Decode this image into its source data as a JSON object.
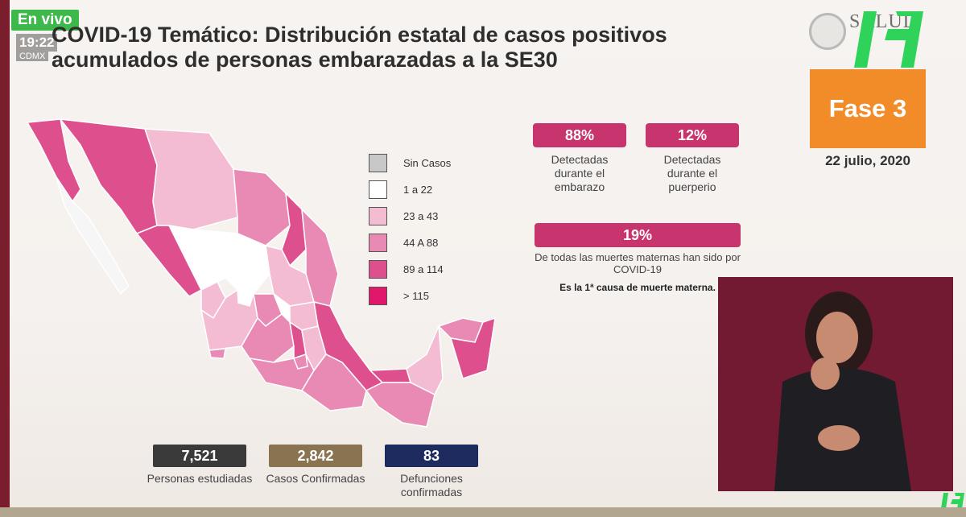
{
  "live": {
    "badge": "En vivo",
    "time": "19:22",
    "city": "CDMX"
  },
  "title": "COVID-19 Temático: Distribución estatal de casos positivos acumulados de personas embarazadas a la SE30",
  "header": {
    "salud_logo": "SALUD",
    "channel_logo": "14"
  },
  "fase": {
    "label": "Fase 3",
    "date": "22 julio, 2020",
    "color": "#f28c28"
  },
  "legend": [
    {
      "label": "Sin Casos",
      "color": "#c8c8c8"
    },
    {
      "label": "1  a 22",
      "color": "#ffffff"
    },
    {
      "label": "23 a 43",
      "color": "#f3bcd3"
    },
    {
      "label": "44 A 88",
      "color": "#e98ab5"
    },
    {
      "label": "89 a 114",
      "color": "#de4f8d"
    },
    {
      "label": "> 115",
      "color": "#e0176a"
    }
  ],
  "stats_pills": [
    {
      "value": "88%",
      "label": "Detectadas durante el embarazo"
    },
    {
      "value": "12%",
      "label": "Detectadas durante el puerperio"
    }
  ],
  "maternal": {
    "value": "19%",
    "label": "De todas las muertes maternas han sido por COVID-19",
    "note": "Es la 1ª causa de muerte materna."
  },
  "bottom_stats": [
    {
      "value": "7,521",
      "label": "Personas estudiadas",
      "color": "#3a3a3a"
    },
    {
      "value": "2,842",
      "label": "Casos Confirmadas",
      "color": "#8a7350"
    },
    {
      "value": "83",
      "label": "Defunciones confirmadas",
      "color": "#1d2b5e"
    }
  ]
}
